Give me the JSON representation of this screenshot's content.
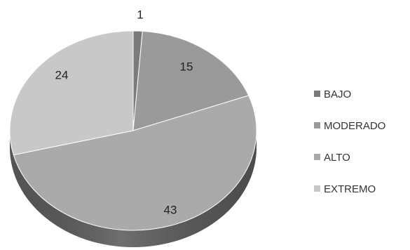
{
  "chart_data": {
    "type": "pie",
    "three_d": true,
    "categories": [
      "BAJO",
      "MODERADO",
      "ALTO",
      "EXTREMO"
    ],
    "values": [
      1,
      15,
      43,
      24
    ],
    "data_labels": [
      "1",
      "15",
      "43",
      "24"
    ],
    "legend_position": "right",
    "colors": {
      "BAJO": "#7b7b7b",
      "MODERADO": "#9a9a9a",
      "ALTO": "#aaaaaa",
      "EXTREMO": "#c8c8c8",
      "side": "#6f6f6f",
      "side_dark": "#4c4c4c"
    }
  }
}
